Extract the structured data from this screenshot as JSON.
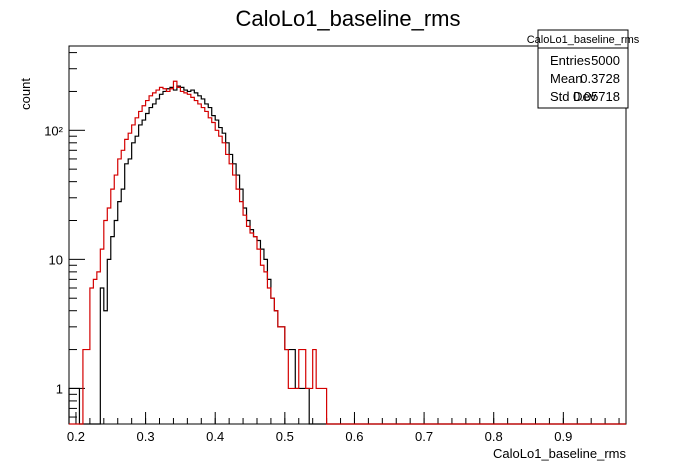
{
  "chart_data": {
    "type": "histogram",
    "title": "CaloLo1_baseline_rms",
    "xlabel": "CaloLo1_baseline_rms",
    "ylabel": "count",
    "xlim": [
      0.19,
      0.99
    ],
    "ylim": [
      0.53,
      450
    ],
    "yscale": "log",
    "grid": false,
    "x_ticks": [
      "0.2",
      "0.3",
      "0.4",
      "0.5",
      "0.6",
      "0.7",
      "0.8",
      "0.9"
    ],
    "x_tick_values": [
      0.2,
      0.3,
      0.4,
      0.5,
      0.6,
      0.7,
      0.8,
      0.9
    ],
    "y_ticks": [
      "1",
      "10",
      "10²"
    ],
    "y_tick_values": [
      1,
      10,
      100
    ],
    "bin_edges_start": 0.19,
    "bin_width": 0.005,
    "series": [
      {
        "color": "#000000",
        "values": [
          1,
          1,
          1,
          0,
          0,
          0,
          0,
          0,
          0,
          6,
          4,
          10,
          15,
          20,
          28,
          35,
          55,
          60,
          80,
          90,
          110,
          120,
          135,
          150,
          160,
          175,
          190,
          200,
          210,
          215,
          205,
          220,
          215,
          205,
          200,
          205,
          195,
          185,
          175,
          160,
          150,
          130,
          120,
          105,
          95,
          80,
          65,
          55,
          45,
          35,
          25,
          20,
          17,
          15,
          14,
          12,
          10,
          7,
          5,
          4,
          3,
          3,
          2,
          2,
          2,
          1,
          1,
          1,
          1,
          0,
          0,
          0,
          0,
          0,
          0,
          0,
          0,
          0,
          0,
          0,
          0,
          0,
          0,
          0,
          0,
          0,
          0,
          0,
          0,
          0,
          0,
          0,
          0,
          0,
          0,
          0,
          0,
          0,
          0,
          0,
          0,
          0,
          0,
          0,
          0,
          0,
          0,
          0,
          0,
          0,
          0,
          0,
          0,
          0,
          0,
          0,
          0,
          0,
          0,
          0,
          0,
          0,
          0,
          0,
          0,
          0,
          0,
          0,
          0,
          0,
          0,
          0,
          0,
          0,
          0,
          0,
          0,
          0,
          0,
          0,
          0,
          0,
          0,
          0,
          0,
          0,
          0,
          0,
          0,
          0,
          0,
          0,
          0,
          0,
          0,
          0,
          0,
          0,
          0,
          0
        ]
      },
      {
        "color": "#d40000",
        "values": [
          0,
          0,
          0,
          0,
          2,
          2,
          6,
          7,
          8,
          12,
          20,
          25,
          35,
          45,
          60,
          70,
          85,
          95,
          110,
          125,
          140,
          155,
          170,
          185,
          195,
          205,
          215,
          210,
          200,
          210,
          240,
          215,
          200,
          195,
          190,
          180,
          170,
          160,
          150,
          140,
          125,
          115,
          100,
          90,
          80,
          65,
          55,
          45,
          35,
          28,
          22,
          18,
          16,
          15,
          12,
          9,
          8,
          6,
          5,
          4,
          3,
          3,
          2,
          1,
          1,
          1,
          2,
          2,
          1,
          1,
          2,
          1,
          1,
          1,
          0,
          0,
          0,
          0,
          0,
          0,
          0,
          0,
          0,
          0,
          0,
          0,
          0,
          0,
          0,
          0,
          0,
          0,
          0,
          0,
          0,
          0,
          0,
          0,
          0,
          0,
          0,
          0,
          0,
          0,
          0,
          0,
          0,
          0,
          0,
          0,
          0,
          0,
          0,
          0,
          0,
          0,
          0,
          0,
          0,
          0,
          0,
          0,
          0,
          0,
          0,
          0,
          0,
          0,
          0,
          0,
          0,
          0,
          0,
          0,
          0,
          0,
          0,
          0,
          0,
          0,
          0,
          0,
          0,
          0,
          0,
          0,
          0,
          0,
          0,
          0,
          0,
          0,
          0,
          0,
          0,
          0,
          0,
          0,
          0,
          0
        ]
      }
    ]
  },
  "stats_box": {
    "title": "CaloLo1_baseline_rms",
    "rows": [
      {
        "label": "Entries",
        "value": "5000"
      },
      {
        "label": "Mean",
        "value": "0.3728"
      },
      {
        "label": "Std Dev",
        "value": "0.05718"
      }
    ]
  }
}
